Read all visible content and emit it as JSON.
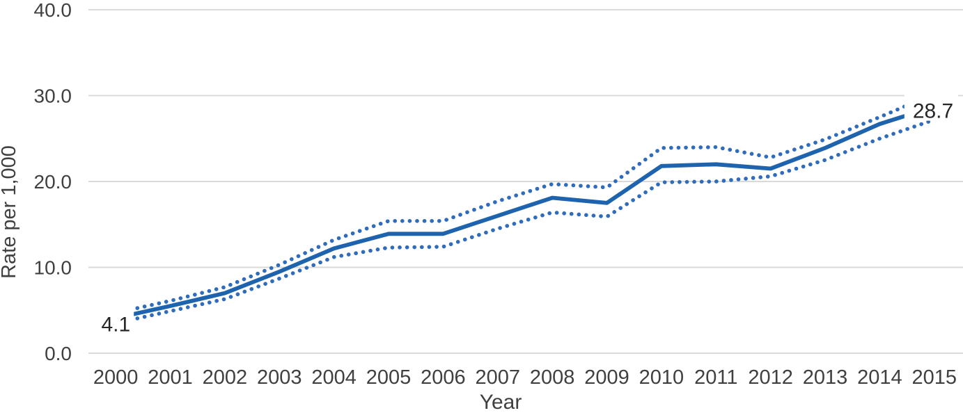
{
  "chart_data": {
    "type": "line",
    "title": "",
    "xlabel": "Year",
    "ylabel": "Rate per 1,000",
    "categories": [
      "2000",
      "2001",
      "2002",
      "2003",
      "2004",
      "2005",
      "2006",
      "2007",
      "2008",
      "2009",
      "2010",
      "2011",
      "2012",
      "2013",
      "2014",
      "2015"
    ],
    "series": [
      {
        "name": "Rate per 1,000",
        "line_style": "solid",
        "values": [
          4.1,
          5.5,
          7.0,
          9.5,
          12.2,
          13.9,
          13.9,
          16.0,
          18.1,
          17.5,
          21.8,
          22.0,
          21.5,
          23.9,
          26.7,
          28.7
        ]
      },
      {
        "name": "Upper confidence band",
        "line_style": "dotted",
        "values": [
          4.7,
          6.1,
          7.7,
          10.3,
          13.2,
          15.4,
          15.4,
          17.7,
          19.7,
          19.3,
          23.9,
          24.0,
          22.8,
          24.9,
          27.5,
          30.2
        ]
      },
      {
        "name": "Lower confidence band",
        "line_style": "dotted",
        "values": [
          3.5,
          4.9,
          6.3,
          8.7,
          11.2,
          12.3,
          12.4,
          14.5,
          16.4,
          15.9,
          19.9,
          20.0,
          20.6,
          22.5,
          25.0,
          27.2
        ]
      }
    ],
    "ylim": [
      0,
      40
    ],
    "ytick_labels": [
      "0.0",
      "10.0",
      "20.0",
      "30.0",
      "40.0"
    ],
    "grid": true,
    "legend_position": "none",
    "annotations": [
      {
        "category": "2000",
        "label": "4.1"
      },
      {
        "category": "2015",
        "label": "28.7"
      }
    ]
  },
  "colors": {
    "line": "#1E63AD",
    "band": "#2F6CBC",
    "gridline": "#D9D9D9",
    "axis_text": "#404040",
    "label_text": "#262626",
    "background": "#FFFFFF"
  }
}
